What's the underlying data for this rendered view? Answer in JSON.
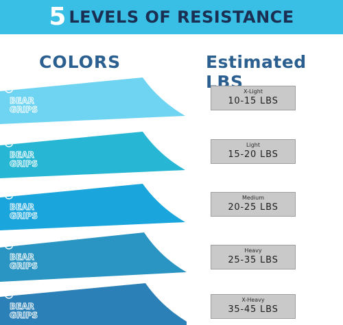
{
  "banner": {
    "number": "5",
    "text": "LEVELS OF RESISTANCE"
  },
  "headers": {
    "colors": "COLORS",
    "estimated": "Estimated LBS"
  },
  "logo_text": "BEAR GRIPS",
  "bands": [
    {
      "color": "#6fd4f2",
      "level": "X-Light",
      "lbs": "10-15 LBS"
    },
    {
      "color": "#27b7d4",
      "level": "Light",
      "lbs": "15-20 LBS"
    },
    {
      "color": "#1aa6dd",
      "level": "Medium",
      "lbs": "20-25 LBS"
    },
    {
      "color": "#2a94c2",
      "level": "Heavy",
      "lbs": "25-35 LBS"
    },
    {
      "color": "#2a80b7",
      "level": "X-Heavy",
      "lbs": "35-45 LBS"
    }
  ]
}
